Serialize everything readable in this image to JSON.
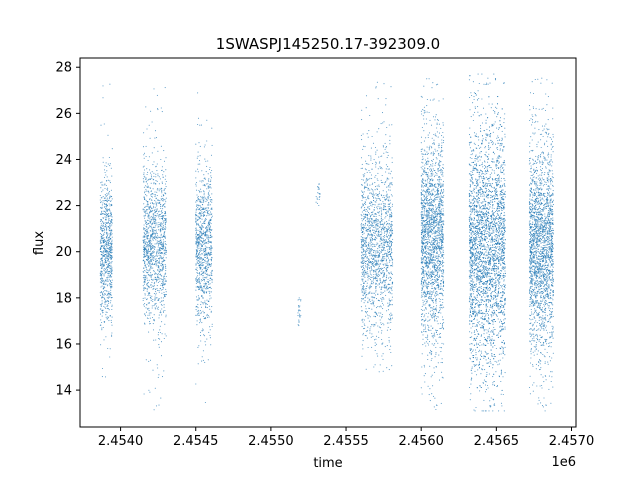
{
  "chart_data": {
    "type": "scatter",
    "title": "1SWASPJ145250.17-392309.0",
    "xlabel": "time",
    "ylabel": "flux",
    "x_offset_label": "1e6",
    "xlim": [
      2453730,
      2457030
    ],
    "ylim": [
      12.4,
      28.4
    ],
    "x_ticks": [
      2454000,
      2454500,
      2455000,
      2455500,
      2456000,
      2456500,
      2457000
    ],
    "x_tick_labels": [
      "2.4540",
      "2.4545",
      "2.4550",
      "2.4555",
      "2.4560",
      "2.4565",
      "2.4570"
    ],
    "y_ticks": [
      14,
      16,
      18,
      20,
      22,
      24,
      26,
      28
    ],
    "y_tick_labels": [
      "14",
      "16",
      "18",
      "20",
      "22",
      "24",
      "26",
      "28"
    ],
    "grid": false,
    "legend": "none",
    "marker_color": "#1f77b4",
    "observing_seasons": [
      {
        "x_start": 2453865,
        "x_end": 2453945,
        "y_center": 20.0,
        "y_spread": 1.6,
        "y_min": 14.1,
        "y_max": 27.6,
        "points": 750
      },
      {
        "x_start": 2454150,
        "x_end": 2454305,
        "y_center": 20.3,
        "y_spread": 1.7,
        "y_min": 13.1,
        "y_max": 27.5,
        "points": 1200
      },
      {
        "x_start": 2454500,
        "x_end": 2454610,
        "y_center": 20.2,
        "y_spread": 1.6,
        "y_min": 13.3,
        "y_max": 27.2,
        "points": 900
      },
      {
        "x_start": 2455180,
        "x_end": 2455200,
        "y_center": 17.3,
        "y_spread": 0.7,
        "y_min": 16.3,
        "y_max": 18.0,
        "points": 25
      },
      {
        "x_start": 2455300,
        "x_end": 2455330,
        "y_center": 22.6,
        "y_spread": 0.4,
        "y_min": 22.0,
        "y_max": 23.3,
        "points": 20
      },
      {
        "x_start": 2455600,
        "x_end": 2455810,
        "y_center": 20.3,
        "y_spread": 1.9,
        "y_min": 14.6,
        "y_max": 27.5,
        "points": 1500
      },
      {
        "x_start": 2456000,
        "x_end": 2456150,
        "y_center": 20.6,
        "y_spread": 2.2,
        "y_min": 13.1,
        "y_max": 27.5,
        "points": 1900
      },
      {
        "x_start": 2456320,
        "x_end": 2456560,
        "y_center": 20.2,
        "y_spread": 2.6,
        "y_min": 13.1,
        "y_max": 27.7,
        "points": 3300
      },
      {
        "x_start": 2456720,
        "x_end": 2456880,
        "y_center": 20.2,
        "y_spread": 2.2,
        "y_min": 13.1,
        "y_max": 27.7,
        "points": 2100
      }
    ]
  }
}
